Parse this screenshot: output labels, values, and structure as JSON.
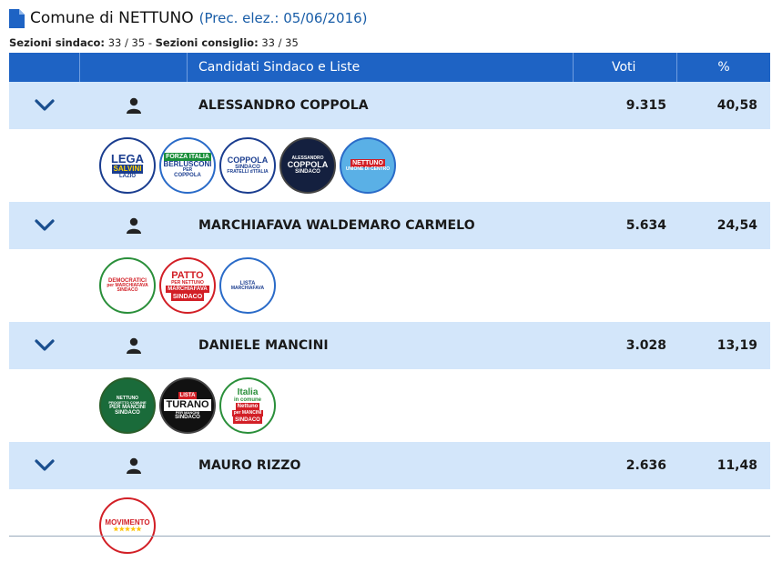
{
  "header": {
    "title": "Comune di NETTUNO",
    "previous": "(Prec. elez.: 05/06/2016)",
    "sezioni_sindaco_label": "Sezioni sindaco:",
    "sezioni_sindaco_value": "33 / 35",
    "separator": "-",
    "sezioni_consiglio_label": "Sezioni consiglio:",
    "sezioni_consiglio_value": "33 / 35"
  },
  "table": {
    "col_candidates": "Candidati Sindaco e Liste",
    "col_votes": "Voti",
    "col_pct": "%"
  },
  "candidates": [
    {
      "name": "ALESSANDRO COPPOLA",
      "votes": "9.315",
      "pct": "40,58",
      "lists": [
        {
          "icon": "lega-salvini-lazio-logo",
          "lines": [
            "LEGA",
            "SALVINI",
            "LAZIO"
          ]
        },
        {
          "icon": "forza-italia-berlusconi-logo",
          "lines": [
            "FORZA ITALIA",
            "BERLUSCONI",
            "PER",
            "COPPOLA"
          ]
        },
        {
          "icon": "coppola-sindaco-fratelli-italia-logo",
          "lines": [
            "COPPOLA",
            "SINDACO",
            "FRATELLI d'ITALIA"
          ]
        },
        {
          "icon": "alessandro-coppola-sindaco-logo",
          "lines": [
            "ALESSANDRO",
            "COPPOLA",
            "SINDACO"
          ]
        },
        {
          "icon": "nettuno-unione-di-centro-logo",
          "lines": [
            "NETTUNO",
            "UNIONE DI CENTRO"
          ]
        }
      ]
    },
    {
      "name": "MARCHIAFAVA WALDEMARO CARMELO",
      "votes": "5.634",
      "pct": "24,54",
      "lists": [
        {
          "icon": "democratici-marchiafava-logo",
          "lines": [
            "DEMOCRATICI",
            "per MARCHIAFAVA",
            "SINDACO"
          ]
        },
        {
          "icon": "patto-per-nettuno-logo",
          "lines": [
            "PATTO",
            "PER NETTUNO",
            "MARCHIAFAVA",
            "SINDACO"
          ]
        },
        {
          "icon": "lista-marchiafava-logo",
          "lines": [
            "LISTA",
            "MARCHIAFAVA"
          ]
        }
      ]
    },
    {
      "name": "DANIELE MANCINI",
      "votes": "3.028",
      "pct": "13,19",
      "lists": [
        {
          "icon": "nettuno-progetto-comune-logo",
          "lines": [
            "NETTUNO",
            "PROGETTO COMUNE",
            "PER MANCINI",
            "SINDACO"
          ]
        },
        {
          "icon": "lista-turano-logo",
          "lines": [
            "LISTA",
            "TURANO",
            "PER MANCINI",
            "SINDACO"
          ]
        },
        {
          "icon": "italia-in-comune-logo",
          "lines": [
            "Italia",
            "in comune",
            "Nettuno",
            "per MANCINI",
            "SINDACO"
          ]
        }
      ]
    },
    {
      "name": "MAURO RIZZO",
      "votes": "2.636",
      "pct": "11,48",
      "lists": [
        {
          "icon": "movimento-5-stelle-logo",
          "lines": [
            "MOVIMENTO",
            "★★★★★"
          ]
        }
      ]
    }
  ],
  "colors": {
    "header_bg": "#1e63c4",
    "candidate_row_bg": "#d3e6fa",
    "accent_blue": "#1a5ea8"
  }
}
